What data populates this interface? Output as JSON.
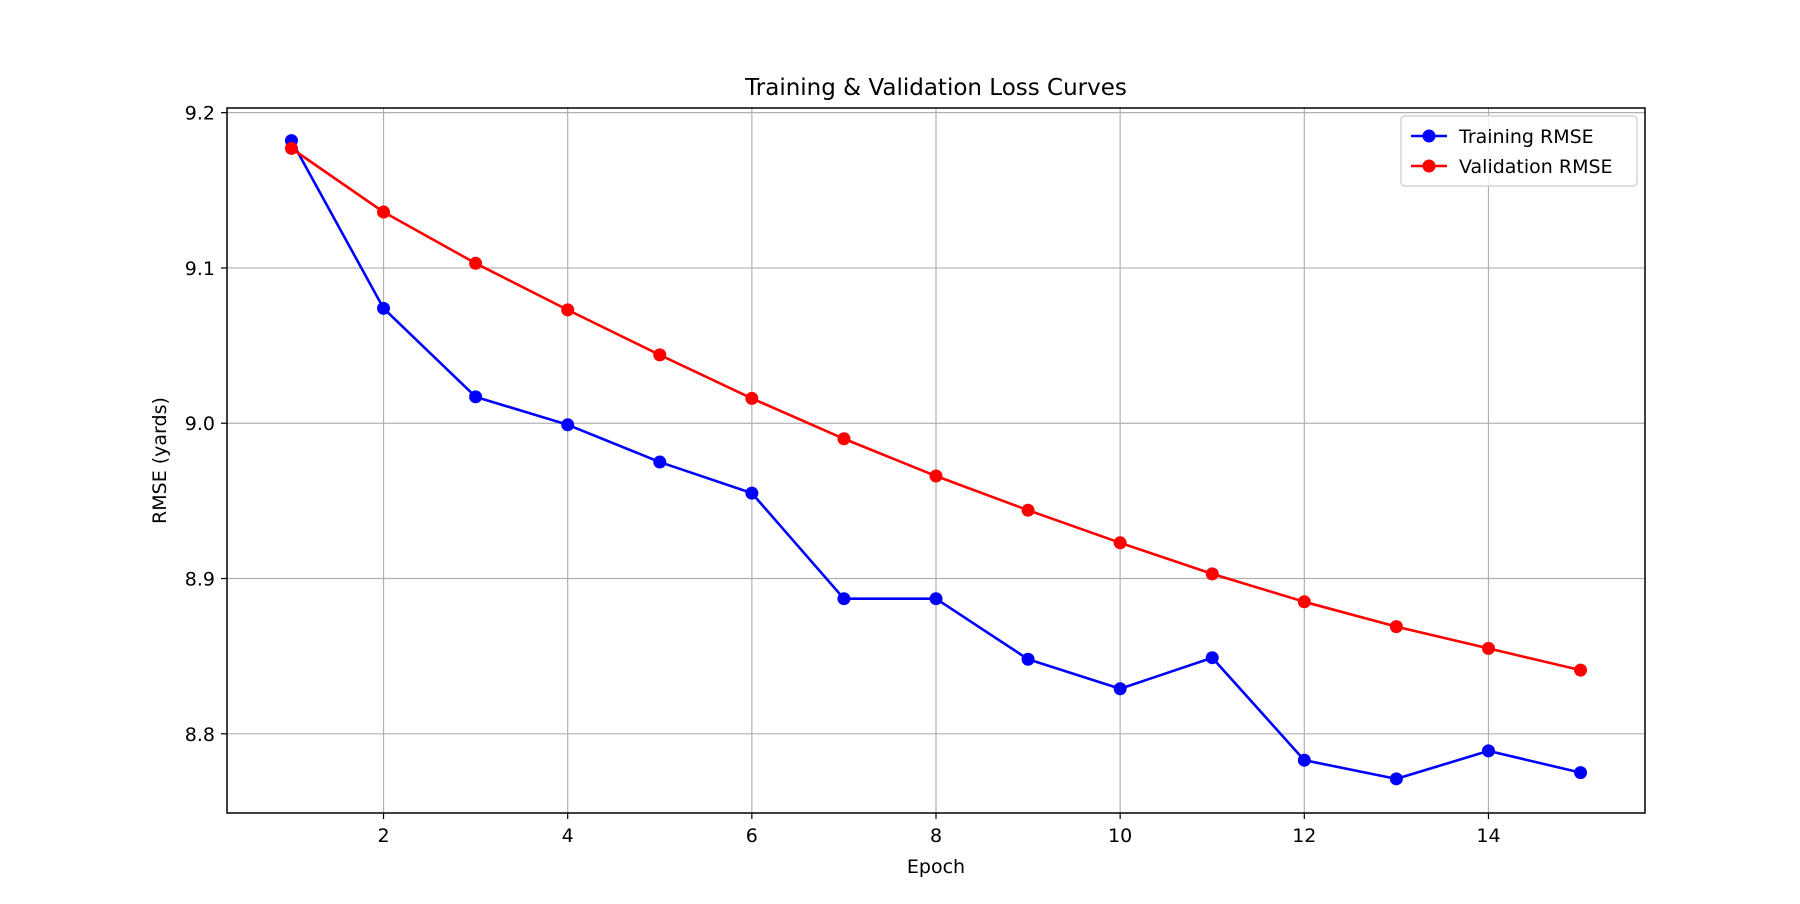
{
  "chart_data": {
    "type": "line",
    "title": "Training & Validation Loss Curves",
    "xlabel": "Epoch",
    "ylabel": "RMSE (yards)",
    "x": [
      1,
      2,
      3,
      4,
      5,
      6,
      7,
      8,
      9,
      10,
      11,
      12,
      13,
      14,
      15
    ],
    "xlim": [
      0.3,
      15.7
    ],
    "ylim": [
      8.749,
      9.203
    ],
    "xticks": [
      2,
      4,
      6,
      8,
      10,
      12,
      14
    ],
    "yticks": [
      8.8,
      8.9,
      9.0,
      9.1,
      9.2
    ],
    "ytick_labels": [
      "8.8",
      "8.9",
      "9.0",
      "9.1",
      "9.2"
    ],
    "grid": true,
    "legend_position": "top-right",
    "series": [
      {
        "name": "Training RMSE",
        "color": "#0000ff",
        "marker": "circle",
        "values": [
          9.182,
          9.074,
          9.017,
          8.999,
          8.975,
          8.955,
          8.887,
          8.887,
          8.848,
          8.829,
          8.849,
          8.783,
          8.771,
          8.789,
          8.775
        ]
      },
      {
        "name": "Validation RMSE",
        "color": "#ff0000",
        "marker": "circle",
        "values": [
          9.177,
          9.136,
          9.103,
          9.073,
          9.044,
          9.016,
          8.99,
          8.966,
          8.944,
          8.923,
          8.903,
          8.885,
          8.869,
          8.855,
          8.841
        ]
      }
    ]
  }
}
